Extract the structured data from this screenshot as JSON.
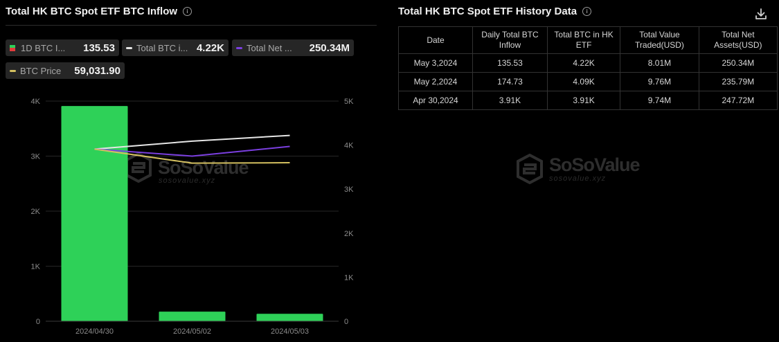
{
  "left_panel": {
    "title": "Total HK BTC Spot ETF BTC Inflow",
    "chips": [
      {
        "label": "1D BTC I...",
        "value": "135.53"
      },
      {
        "label": "Total BTC i...",
        "value": "4.22K",
        "color": "#e6e6e6"
      },
      {
        "label": "Total Net ...",
        "value": "250.34M",
        "color": "#7b3fe0"
      },
      {
        "label": "BTC Price",
        "value": "59,031.90",
        "color": "#d4c060"
      }
    ],
    "chip_split_colors": {
      "top": "#2bd15a",
      "bottom": "#e23b3b"
    }
  },
  "right_panel": {
    "title": "Total HK BTC Spot ETF History Data",
    "table": {
      "headers": [
        "Date",
        "Daily Total BTC\nInflow",
        "Total BTC in HK\nETF",
        "Total Value\nTraded(USD)",
        "Total Net\nAssets(USD)"
      ],
      "rows": [
        [
          "May 3,2024",
          "135.53",
          "4.22K",
          "8.01M",
          "250.34M"
        ],
        [
          "May 2,2024",
          "174.73",
          "4.09K",
          "9.76M",
          "235.79M"
        ],
        [
          "Apr 30,2024",
          "3.91K",
          "3.91K",
          "9.74M",
          "247.72M"
        ]
      ]
    }
  },
  "watermark": {
    "name": "SoSoValue",
    "url": "sosovalue.xyz"
  },
  "icons": {
    "info": "info-icon",
    "download": "download-icon",
    "watermark_logo": "sosovalue-logo-icon"
  },
  "colors": {
    "bar": "#2ed158",
    "grid": "#2a2a2a",
    "positive": "#3fd56c"
  },
  "chart_data": {
    "type": "bar",
    "categories": [
      "2024/04/30",
      "2024/05/02",
      "2024/05/03"
    ],
    "series": [
      {
        "name": "1D BTC I...",
        "kind": "bar",
        "axis": "left",
        "color": "#2ed158",
        "values": [
          3910,
          174.73,
          135.53
        ]
      },
      {
        "name": "Total BTC i...",
        "kind": "line",
        "axis": "right",
        "color": "#e6e6e6",
        "values": [
          3910,
          4090,
          4220
        ]
      },
      {
        "name": "Total Net ...",
        "kind": "line",
        "axis": "right",
        "color": "#7b3fe0",
        "values": [
          3910,
          3750,
          3970
        ]
      },
      {
        "name": "BTC Price",
        "kind": "line",
        "axis": "right",
        "color": "#d4c060",
        "values": [
          3910,
          3590,
          3600
        ]
      }
    ],
    "y_left": {
      "ticks": [
        "4K",
        "3K",
        "2K",
        "1K",
        "0"
      ],
      "ylim": [
        0,
        4000
      ]
    },
    "y_right": {
      "ticks": [
        "5K",
        "4K",
        "3K",
        "2K",
        "1K",
        "0"
      ],
      "ylim": [
        0,
        5000
      ]
    },
    "grid": true
  }
}
